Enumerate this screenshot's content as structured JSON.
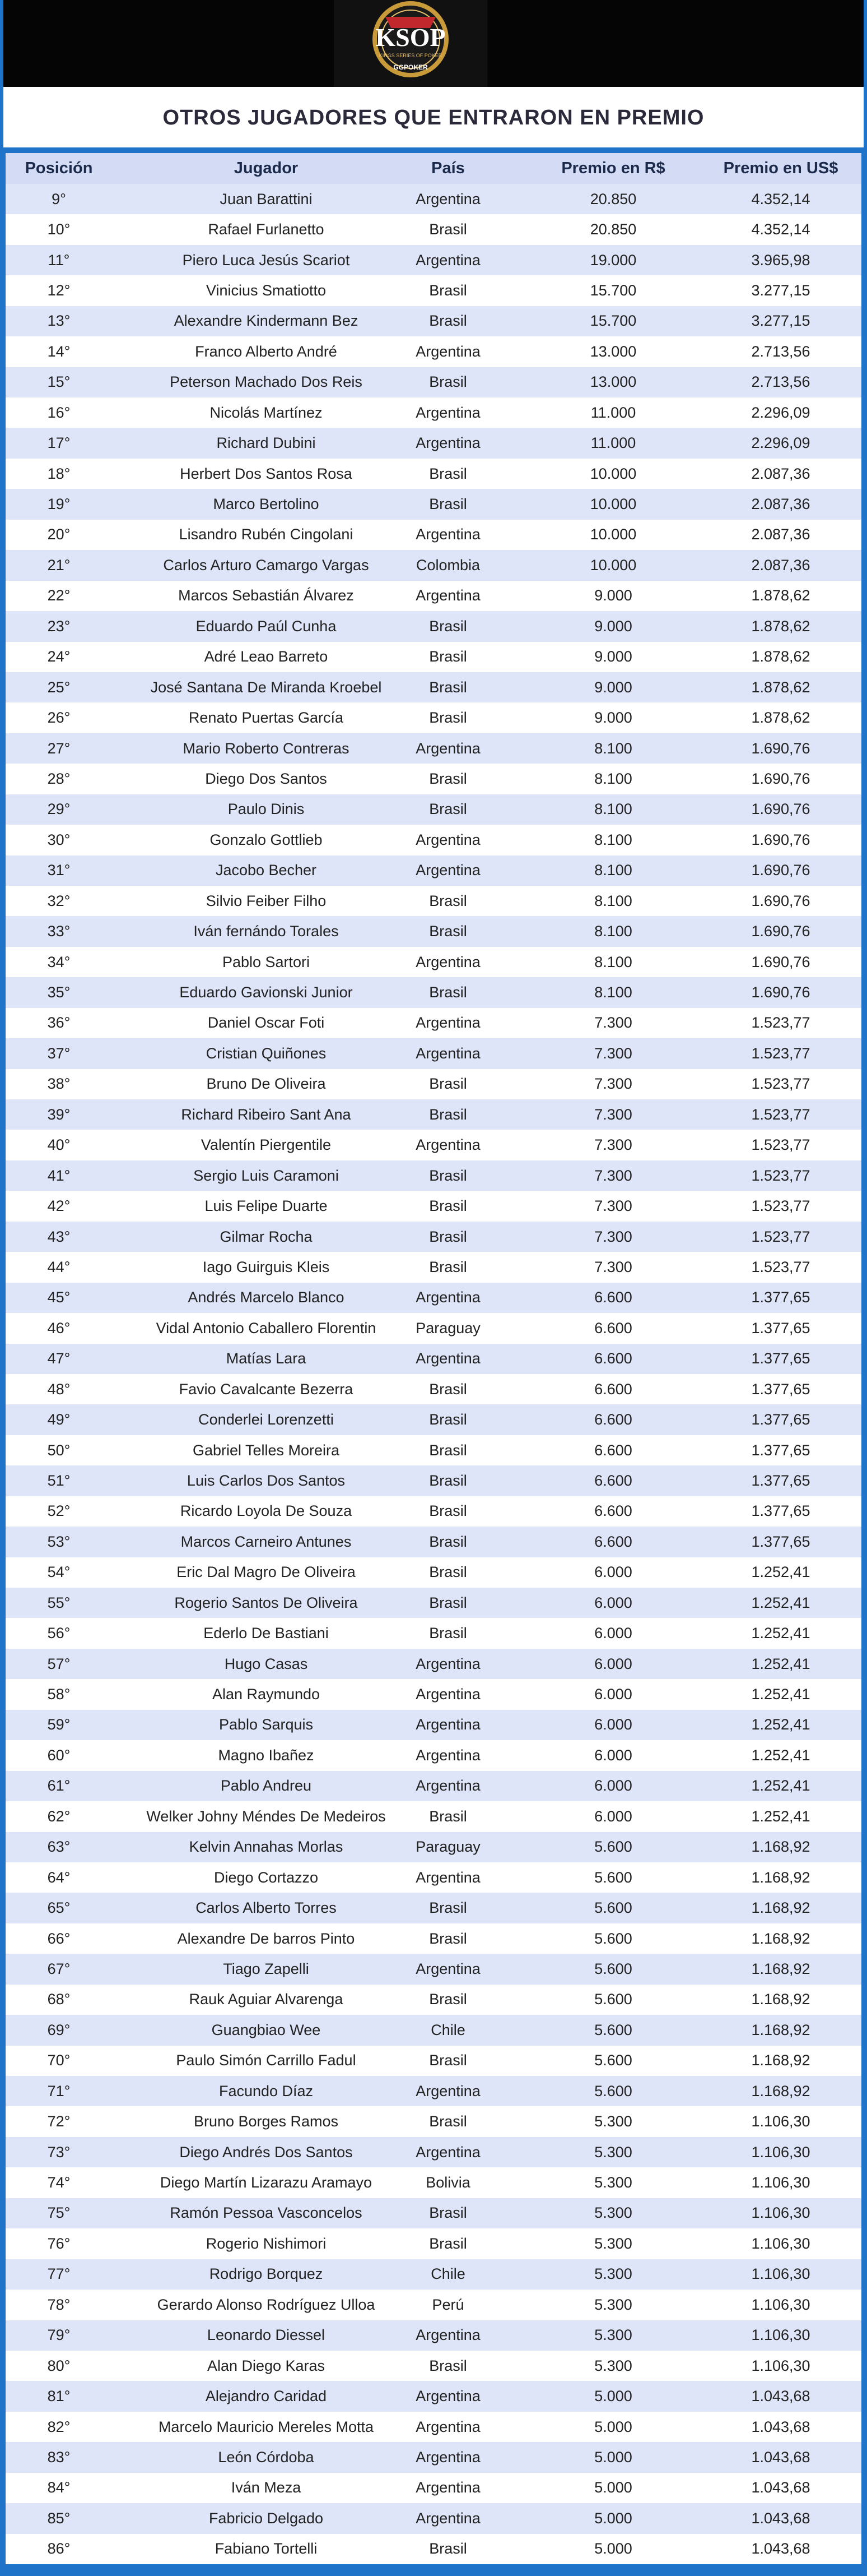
{
  "header": {
    "logo": "KSOP",
    "logo_subtitle": "KINGS SERIES OF POKER",
    "sponsor": "GGPOKER"
  },
  "title": "OTROS JUGADORES QUE ENTRARON EN PREMIO",
  "table": {
    "columns": [
      "Posición",
      "Jugador",
      "País",
      "Premio en R$",
      "Premio en US$"
    ],
    "rows": [
      [
        "9°",
        "Juan Barattini",
        "Argentina",
        "20.850",
        "4.352,14"
      ],
      [
        "10°",
        "Rafael Furlanetto",
        "Brasil",
        "20.850",
        "4.352,14"
      ],
      [
        "11°",
        "Piero Luca Jesús Scariot",
        "Argentina",
        "19.000",
        "3.965,98"
      ],
      [
        "12°",
        "Vinicius Smatiotto",
        "Brasil",
        "15.700",
        "3.277,15"
      ],
      [
        "13°",
        "Alexandre Kindermann  Bez",
        "Brasil",
        "15.700",
        "3.277,15"
      ],
      [
        "14°",
        "Franco Alberto André",
        "Argentina",
        "13.000",
        "2.713,56"
      ],
      [
        "15°",
        "Peterson Machado Dos Reis",
        "Brasil",
        "13.000",
        "2.713,56"
      ],
      [
        "16°",
        "Nicolás Martínez",
        "Argentina",
        "11.000",
        "2.296,09"
      ],
      [
        "17°",
        "Richard Dubini",
        "Argentina",
        "11.000",
        "2.296,09"
      ],
      [
        "18°",
        "Herbert Dos Santos Rosa",
        "Brasil",
        "10.000",
        "2.087,36"
      ],
      [
        "19°",
        "Marco Bertolino",
        "Brasil",
        "10.000",
        "2.087,36"
      ],
      [
        "20°",
        "Lisandro Rubén Cingolani",
        "Argentina",
        "10.000",
        "2.087,36"
      ],
      [
        "21°",
        "Carlos Arturo Camargo Vargas",
        "Colombia",
        "10.000",
        "2.087,36"
      ],
      [
        "22°",
        "Marcos Sebastián Álvarez",
        "Argentina",
        "9.000",
        "1.878,62"
      ],
      [
        "23°",
        "Eduardo Paúl Cunha",
        "Brasil",
        "9.000",
        "1.878,62"
      ],
      [
        "24°",
        "Adré Leao Barreto",
        "Brasil",
        "9.000",
        "1.878,62"
      ],
      [
        "25°",
        "José Santana De Miranda Kroebel",
        "Brasil",
        "9.000",
        "1.878,62"
      ],
      [
        "26°",
        "Renato Puertas García",
        "Brasil",
        "9.000",
        "1.878,62"
      ],
      [
        "27°",
        "Mario Roberto Contreras",
        "Argentina",
        "8.100",
        "1.690,76"
      ],
      [
        "28°",
        "Diego Dos Santos",
        "Brasil",
        "8.100",
        "1.690,76"
      ],
      [
        "29°",
        "Paulo Dinis",
        "Brasil",
        "8.100",
        "1.690,76"
      ],
      [
        "30°",
        "Gonzalo Gottlieb",
        "Argentina",
        "8.100",
        "1.690,76"
      ],
      [
        "31°",
        "Jacobo Becher",
        "Argentina",
        "8.100",
        "1.690,76"
      ],
      [
        "32°",
        "Silvio Feiber Filho",
        "Brasil",
        "8.100",
        "1.690,76"
      ],
      [
        "33°",
        "Iván fernándo Torales",
        "Brasil",
        "8.100",
        "1.690,76"
      ],
      [
        "34°",
        "Pablo Sartori",
        "Argentina",
        "8.100",
        "1.690,76"
      ],
      [
        "35°",
        "Eduardo Gavionski Junior",
        "Brasil",
        "8.100",
        "1.690,76"
      ],
      [
        "36°",
        "Daniel Oscar Foti",
        "Argentina",
        "7.300",
        "1.523,77"
      ],
      [
        "37°",
        "Cristian Quiñones",
        "Argentina",
        "7.300",
        "1.523,77"
      ],
      [
        "38°",
        "Bruno De Oliveira",
        "Brasil",
        "7.300",
        "1.523,77"
      ],
      [
        "39°",
        "Richard Ribeiro Sant Ana",
        "Brasil",
        "7.300",
        "1.523,77"
      ],
      [
        "40°",
        "Valentín Piergentile",
        "Argentina",
        "7.300",
        "1.523,77"
      ],
      [
        "41°",
        "Sergio Luis Caramoni",
        "Brasil",
        "7.300",
        "1.523,77"
      ],
      [
        "42°",
        "Luis Felipe Duarte",
        "Brasil",
        "7.300",
        "1.523,77"
      ],
      [
        "43°",
        "Gilmar Rocha",
        "Brasil",
        "7.300",
        "1.523,77"
      ],
      [
        "44°",
        "Iago Guirguis Kleis",
        "Brasil",
        "7.300",
        "1.523,77"
      ],
      [
        "45°",
        "Andrés Marcelo Blanco",
        "Argentina",
        "6.600",
        "1.377,65"
      ],
      [
        "46°",
        "Vidal Antonio Caballero Florentin",
        "Paraguay",
        "6.600",
        "1.377,65"
      ],
      [
        "47°",
        "Matías Lara",
        "Argentina",
        "6.600",
        "1.377,65"
      ],
      [
        "48°",
        "Favio Cavalcante Bezerra",
        "Brasil",
        "6.600",
        "1.377,65"
      ],
      [
        "49°",
        "Conderlei Lorenzetti",
        "Brasil",
        "6.600",
        "1.377,65"
      ],
      [
        "50°",
        "Gabriel Telles Moreira",
        "Brasil",
        "6.600",
        "1.377,65"
      ],
      [
        "51°",
        "Luis Carlos Dos Santos",
        "Brasil",
        "6.600",
        "1.377,65"
      ],
      [
        "52°",
        "Ricardo Loyola De Souza",
        "Brasil",
        "6.600",
        "1.377,65"
      ],
      [
        "53°",
        "Marcos Carneiro Antunes",
        "Brasil",
        "6.600",
        "1.377,65"
      ],
      [
        "54°",
        "Eric Dal Magro De Oliveira",
        "Brasil",
        "6.000",
        "1.252,41"
      ],
      [
        "55°",
        "Rogerio Santos De Oliveira",
        "Brasil",
        "6.000",
        "1.252,41"
      ],
      [
        "56°",
        "Ederlo De Bastiani",
        "Brasil",
        "6.000",
        "1.252,41"
      ],
      [
        "57°",
        "Hugo Casas",
        "Argentina",
        "6.000",
        "1.252,41"
      ],
      [
        "58°",
        "Alan Raymundo",
        "Argentina",
        "6.000",
        "1.252,41"
      ],
      [
        "59°",
        "Pablo Sarquis",
        "Argentina",
        "6.000",
        "1.252,41"
      ],
      [
        "60°",
        "Magno Ibañez",
        "Argentina",
        "6.000",
        "1.252,41"
      ],
      [
        "61°",
        "Pablo Andreu",
        "Argentina",
        "6.000",
        "1.252,41"
      ],
      [
        "62°",
        "Welker Johny Méndes De Medeiros",
        "Brasil",
        "6.000",
        "1.252,41"
      ],
      [
        "63°",
        "Kelvin Annahas Morlas",
        "Paraguay",
        "5.600",
        "1.168,92"
      ],
      [
        "64°",
        "Diego Cortazzo",
        "Argentina",
        "5.600",
        "1.168,92"
      ],
      [
        "65°",
        "Carlos Alberto Torres",
        "Brasil",
        "5.600",
        "1.168,92"
      ],
      [
        "66°",
        "Alexandre De barros Pinto",
        "Brasil",
        "5.600",
        "1.168,92"
      ],
      [
        "67°",
        "Tiago Zapelli",
        "Argentina",
        "5.600",
        "1.168,92"
      ],
      [
        "68°",
        "Rauk Aguiar Alvarenga",
        "Brasil",
        "5.600",
        "1.168,92"
      ],
      [
        "69°",
        "Guangbiao Wee",
        "Chile",
        "5.600",
        "1.168,92"
      ],
      [
        "70°",
        "Paulo Simón Carrillo Fadul",
        "Brasil",
        "5.600",
        "1.168,92"
      ],
      [
        "71°",
        "Facundo Díaz",
        "Argentina",
        "5.600",
        "1.168,92"
      ],
      [
        "72°",
        "Bruno Borges Ramos",
        "Brasil",
        "5.300",
        "1.106,30"
      ],
      [
        "73°",
        "Diego Andrés Dos Santos",
        "Argentina",
        "5.300",
        "1.106,30"
      ],
      [
        "74°",
        "Diego Martín Lizarazu Aramayo",
        "Bolivia",
        "5.300",
        "1.106,30"
      ],
      [
        "75°",
        "Ramón Pessoa Vasconcelos",
        "Brasil",
        "5.300",
        "1.106,30"
      ],
      [
        "76°",
        "Rogerio Nishimori",
        "Brasil",
        "5.300",
        "1.106,30"
      ],
      [
        "77°",
        "Rodrigo Borquez",
        "Chile",
        "5.300",
        "1.106,30"
      ],
      [
        "78°",
        "Gerardo Alonso Rodríguez Ulloa",
        "Perú",
        "5.300",
        "1.106,30"
      ],
      [
        "79°",
        "Leonardo Diessel",
        "Argentina",
        "5.300",
        "1.106,30"
      ],
      [
        "80°",
        "Alan Diego Karas",
        "Brasil",
        "5.300",
        "1.106,30"
      ],
      [
        "81°",
        "Alejandro Caridad",
        "Argentina",
        "5.000",
        "1.043,68"
      ],
      [
        "82°",
        "Marcelo Mauricio Mereles Motta",
        "Argentina",
        "5.000",
        "1.043,68"
      ],
      [
        "83°",
        "León Córdoba",
        "Argentina",
        "5.000",
        "1.043,68"
      ],
      [
        "84°",
        "Iván Meza",
        "Argentina",
        "5.000",
        "1.043,68"
      ],
      [
        "85°",
        "Fabricio Delgado",
        "Argentina",
        "5.000",
        "1.043,68"
      ],
      [
        "86°",
        "Fabiano Tortelli",
        "Brasil",
        "5.000",
        "1.043,68"
      ]
    ]
  }
}
